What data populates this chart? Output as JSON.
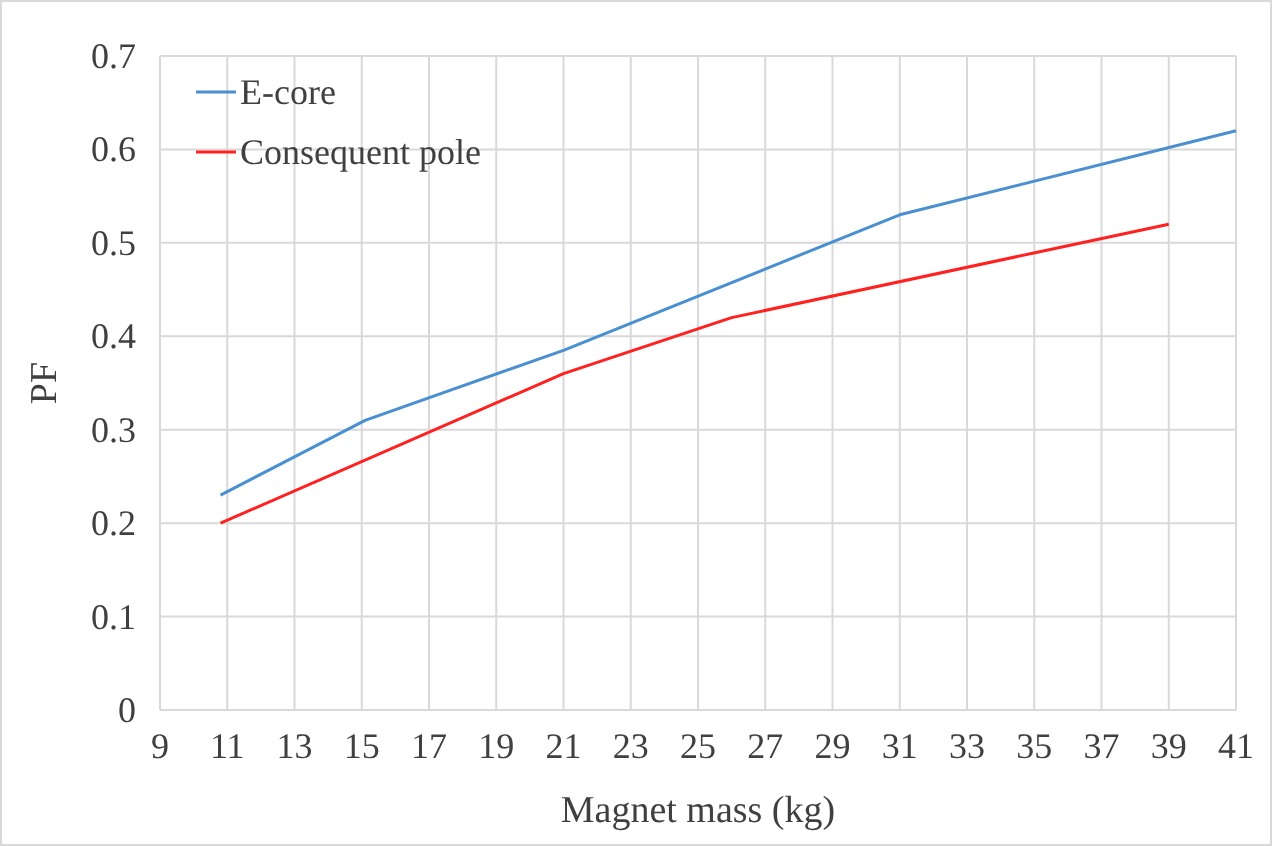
{
  "chart_data": {
    "type": "line",
    "xlabel": "Magnet mass (kg)",
    "ylabel": "PF",
    "xlim": [
      9,
      41
    ],
    "xticks": [
      9,
      11,
      13,
      15,
      17,
      19,
      21,
      23,
      25,
      27,
      29,
      31,
      33,
      35,
      37,
      39,
      41
    ],
    "ylim": [
      0,
      0.7
    ],
    "yticks": [
      0,
      0.1,
      0.2,
      0.3,
      0.4,
      0.5,
      0.6,
      0.7
    ],
    "grid": true,
    "legend": "top left",
    "series": [
      {
        "name": "E-core",
        "color": "#4a90d0",
        "x": [
          10.8,
          15.1,
          21,
          31,
          41
        ],
        "values": [
          0.23,
          0.31,
          0.385,
          0.53,
          0.62
        ]
      },
      {
        "name": "Consequent pole",
        "color": "#ff2020",
        "x": [
          10.8,
          21,
          26,
          39
        ],
        "values": [
          0.2,
          0.36,
          0.42,
          0.52
        ]
      }
    ]
  }
}
